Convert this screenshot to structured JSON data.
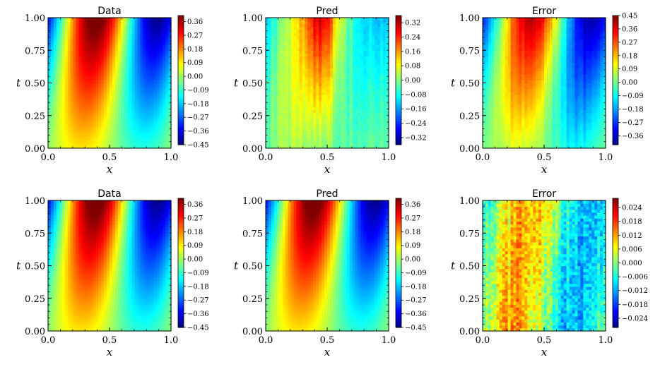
{
  "figure": {
    "colormap": "jet",
    "background": "#ffffff"
  },
  "chart_data": [
    {
      "type": "heatmap",
      "title": "Data",
      "xlabel": "x",
      "ylabel": "t",
      "xlim": [
        0,
        1
      ],
      "ylim": [
        0,
        1
      ],
      "xticks": [
        "0.0",
        "0.5",
        "1.0"
      ],
      "yticks": [
        "0.00",
        "0.25",
        "0.50",
        "0.75",
        "1.00"
      ],
      "field": "solution",
      "colorbar": {
        "vmin": -0.45,
        "vmax": 0.4,
        "ticks": [
          "0.36",
          "0.27",
          "0.18",
          "0.09",
          "0.00",
          "−0.09",
          "−0.18",
          "−0.27",
          "−0.36",
          "−0.45"
        ]
      }
    },
    {
      "type": "heatmap",
      "title": "Pred",
      "xlabel": "x",
      "ylabel": "t",
      "xlim": [
        0,
        1
      ],
      "ylim": [
        0,
        1
      ],
      "xticks": [
        "0.0",
        "0.5",
        "1.0"
      ],
      "yticks": [
        "0.00",
        "0.25",
        "0.50",
        "0.75",
        "1.00"
      ],
      "field": "noisy_prediction",
      "colorbar": {
        "vmin": -0.36,
        "vmax": 0.36,
        "ticks": [
          "0.32",
          "0.24",
          "0.16",
          "0.08",
          "0.00",
          "−0.08",
          "−0.16",
          "−0.24",
          "−0.32"
        ]
      }
    },
    {
      "type": "heatmap",
      "title": "Error",
      "xlabel": "x",
      "ylabel": "t",
      "xlim": [
        0,
        1
      ],
      "ylim": [
        0,
        1
      ],
      "xticks": [
        "0.0",
        "0.5",
        "1.0"
      ],
      "yticks": [
        "0.00",
        "0.25",
        "0.50",
        "0.75",
        "1.00"
      ],
      "field": "large_error",
      "colorbar": {
        "vmin": -0.42,
        "vmax": 0.45,
        "ticks": [
          "0.45",
          "0.36",
          "0.27",
          "0.18",
          "0.09",
          "0.00",
          "−0.09",
          "−0.18",
          "−0.27",
          "−0.36"
        ]
      }
    },
    {
      "type": "heatmap",
      "title": "Data",
      "xlabel": "x",
      "ylabel": "t",
      "xlim": [
        0,
        1
      ],
      "ylim": [
        0,
        1
      ],
      "xticks": [
        "0.0",
        "0.5",
        "1.0"
      ],
      "yticks": [
        "0.00",
        "0.25",
        "0.50",
        "0.75",
        "1.00"
      ],
      "field": "solution",
      "colorbar": {
        "vmin": -0.45,
        "vmax": 0.4,
        "ticks": [
          "0.36",
          "0.27",
          "0.18",
          "0.09",
          "0.00",
          "−0.09",
          "−0.18",
          "−0.27",
          "−0.36",
          "−0.45"
        ]
      }
    },
    {
      "type": "heatmap",
      "title": "Pred",
      "xlabel": "x",
      "ylabel": "t",
      "xlim": [
        0,
        1
      ],
      "ylim": [
        0,
        1
      ],
      "xticks": [
        "0.0",
        "0.5",
        "1.0"
      ],
      "yticks": [
        "0.00",
        "0.25",
        "0.50",
        "0.75",
        "1.00"
      ],
      "field": "solution",
      "colorbar": {
        "vmin": -0.45,
        "vmax": 0.4,
        "ticks": [
          "0.36",
          "0.27",
          "0.18",
          "0.09",
          "0.00",
          "−0.09",
          "−0.18",
          "−0.27",
          "−0.36",
          "−0.45"
        ]
      }
    },
    {
      "type": "heatmap",
      "title": "Error",
      "xlabel": "x",
      "ylabel": "t",
      "xlim": [
        0,
        1
      ],
      "ylim": [
        0,
        1
      ],
      "xticks": [
        "0.0",
        "0.5",
        "1.0"
      ],
      "yticks": [
        "0.00",
        "0.25",
        "0.50",
        "0.75",
        "1.00"
      ],
      "field": "small_error",
      "colorbar": {
        "vmin": -0.028,
        "vmax": 0.028,
        "ticks": [
          "0.024",
          "0.018",
          "0.012",
          "0.006",
          "0.000",
          "−0.006",
          "−0.012",
          "−0.018",
          "−0.024"
        ]
      }
    }
  ]
}
